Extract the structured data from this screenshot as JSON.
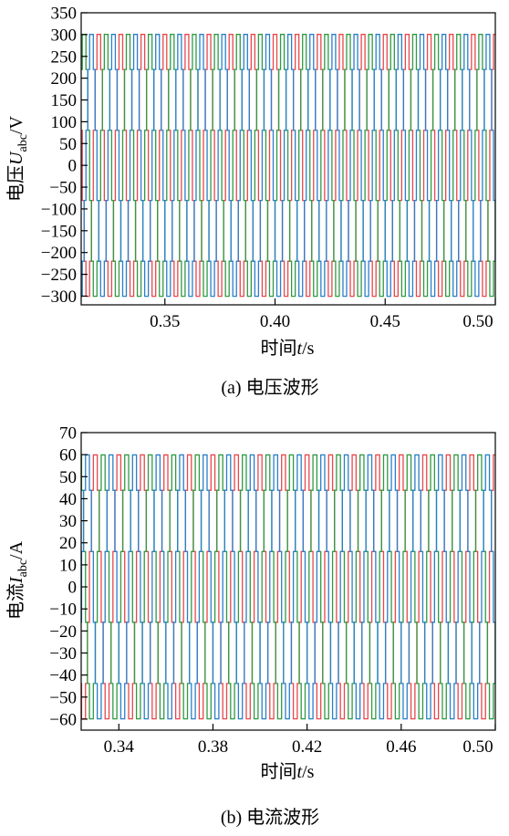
{
  "chart_data": [
    {
      "type": "line",
      "caption": "(a) 电压波形",
      "ylabel_prefix": "电压",
      "ylabel_symbol": "U",
      "ylabel_subscript": "abc",
      "ylabel_unit": "/V",
      "xlabel_prefix": "时间",
      "xlabel_symbol": "t",
      "xlabel_unit": "/s",
      "xlim": [
        0.312,
        0.5
      ],
      "ylim": [
        -320,
        350
      ],
      "xticks": [
        0.35,
        0.4,
        0.45,
        0.5
      ],
      "xtick_labels": [
        "0.35",
        "0.40",
        "0.45",
        "0.50"
      ],
      "yticks": [
        -300,
        -250,
        -200,
        -150,
        -100,
        -50,
        0,
        50,
        100,
        150,
        200,
        250,
        300,
        350
      ],
      "ytick_labels": [
        "−300",
        "−250",
        "−200",
        "−150",
        "−100",
        "−50",
        "0",
        "50",
        "100",
        "150",
        "200",
        "250",
        "300",
        "350"
      ],
      "grid": false,
      "legend": "none",
      "waveform": "stepped-sine",
      "frequency_hz": 100,
      "steps_per_period": 12,
      "series": [
        {
          "phase_deg": 90,
          "amplitude": 311,
          "color": "#e8474b"
        },
        {
          "phase_deg": -30,
          "amplitude": 311,
          "color": "#2f9a44"
        },
        {
          "phase_deg": 210,
          "amplitude": 311,
          "color": "#2a7fc9"
        }
      ]
    },
    {
      "type": "line",
      "caption": "(b) 电流波形",
      "ylabel_prefix": "电流",
      "ylabel_symbol": "I",
      "ylabel_subscript": "abc",
      "ylabel_unit": "/A",
      "xlabel_prefix": "时间",
      "xlabel_symbol": "t",
      "xlabel_unit": "/s",
      "xlim": [
        0.324,
        0.5
      ],
      "ylim": [
        -65,
        70
      ],
      "xticks": [
        0.34,
        0.38,
        0.42,
        0.46,
        0.5
      ],
      "xtick_labels": [
        "0.34",
        "0.38",
        "0.42",
        "0.46",
        "0.50"
      ],
      "yticks": [
        -60,
        -50,
        -40,
        -30,
        -20,
        -10,
        0,
        10,
        20,
        30,
        40,
        50,
        60,
        70
      ],
      "ytick_labels": [
        "−60",
        "−50",
        "−40",
        "−30",
        "−20",
        "−10",
        "0",
        "10",
        "20",
        "30",
        "40",
        "50",
        "60",
        "70"
      ],
      "grid": false,
      "legend": "none",
      "waveform": "stepped-sine",
      "frequency_hz": 100,
      "steps_per_period": 12,
      "series": [
        {
          "phase_deg": 90,
          "amplitude": 62,
          "color": "#e8474b"
        },
        {
          "phase_deg": -30,
          "amplitude": 62,
          "color": "#2f9a44"
        },
        {
          "phase_deg": 210,
          "amplitude": 62,
          "color": "#2a7fc9"
        }
      ]
    }
  ]
}
